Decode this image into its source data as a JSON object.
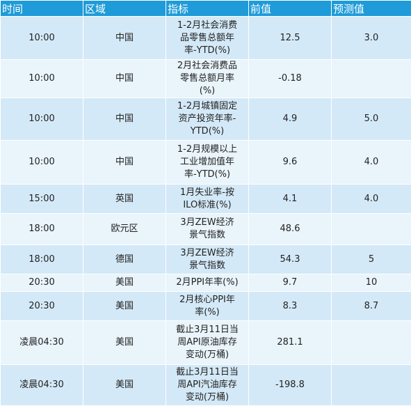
{
  "headers": {
    "time": "时间",
    "region": "区域",
    "indicator": "指标",
    "previous": "前值",
    "forecast": "预测值"
  },
  "rows": [
    {
      "time": "10:00",
      "region": "中国",
      "indicator": "1-2月社会消费品零售总额年率-YTD(%)",
      "previous": "12.5",
      "forecast": "3.0"
    },
    {
      "time": "10:00",
      "region": "中国",
      "indicator": "2月社会消费品零售总额月率(%)",
      "previous": "-0.18",
      "forecast": ""
    },
    {
      "time": "10:00",
      "region": "中国",
      "indicator": "1-2月城镇固定资产投资年率-YTD(%)",
      "previous": "4.9",
      "forecast": "5.0"
    },
    {
      "time": "10:00",
      "region": "中国",
      "indicator": "1-2月规模以上工业增加值年率-YTD(%)",
      "previous": "9.6",
      "forecast": "4.0"
    },
    {
      "time": "15:00",
      "region": "英国",
      "indicator": "1月失业率-按ILO标准(%)",
      "previous": "4.1",
      "forecast": "4.0"
    },
    {
      "time": "18:00",
      "region": "欧元区",
      "indicator": "3月ZEW经济景气指数",
      "previous": "48.6",
      "forecast": ""
    },
    {
      "time": "18:00",
      "region": "德国",
      "indicator": "3月ZEW经济景气指数",
      "previous": "54.3",
      "forecast": "5"
    },
    {
      "time": "20:30",
      "region": "美国",
      "indicator": "2月PPI年率(%)",
      "previous": "9.7",
      "forecast": "10"
    },
    {
      "time": "20:30",
      "region": "美国",
      "indicator": "2月核心PPI年率(%)",
      "previous": "8.3",
      "forecast": "8.7"
    },
    {
      "time": "凌晨04:30",
      "region": "美国",
      "indicator": "截止3月11日当周API原油库存变动(万桶)",
      "previous": "281.1",
      "forecast": ""
    },
    {
      "time": "凌晨04:30",
      "region": "美国",
      "indicator": "截止3月11日当周API汽油库存变动(万桶)",
      "previous": "-198.8",
      "forecast": ""
    }
  ]
}
